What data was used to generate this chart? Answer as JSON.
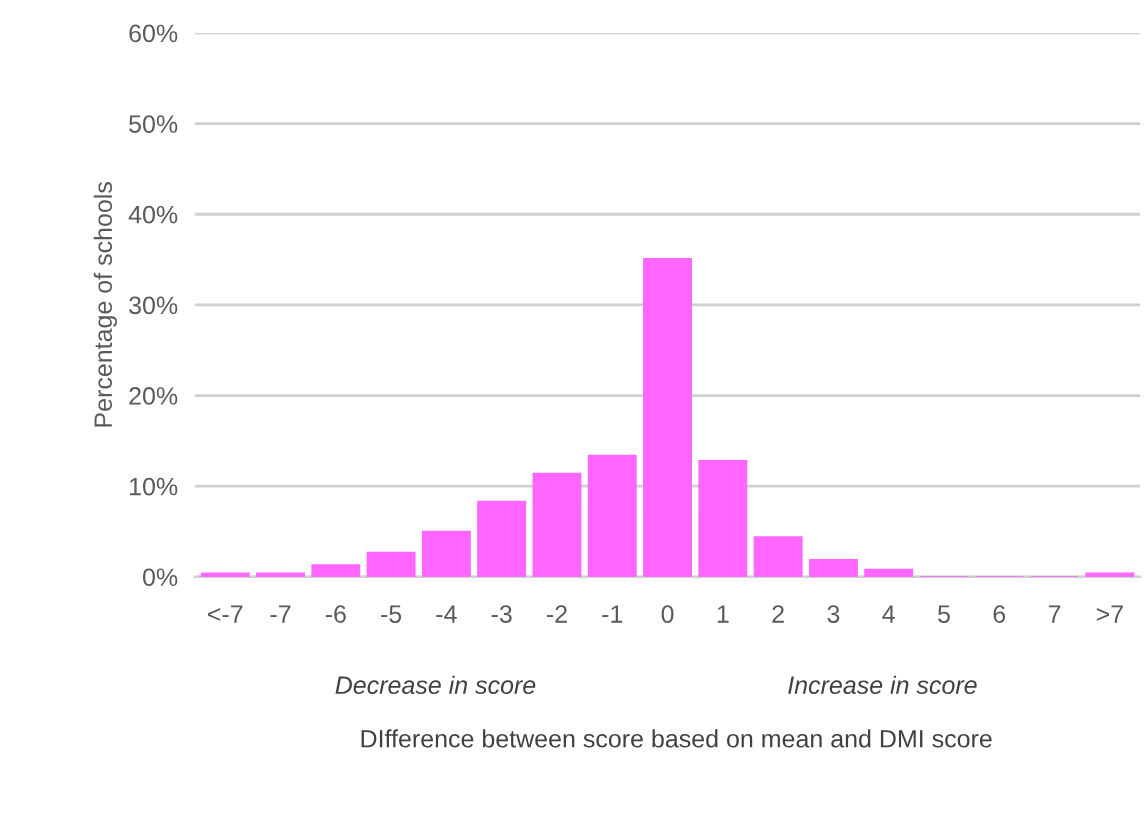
{
  "chart_data": {
    "type": "bar",
    "ylabel": "Percentage of schools",
    "xlabel": "DIfference between score based on mean and DMI score",
    "categories": [
      "<-7",
      "-7",
      "-6",
      "-5",
      "-4",
      "-3",
      "-2",
      "-1",
      "0",
      "1",
      "2",
      "3",
      "4",
      "5",
      "6",
      "7",
      ">7"
    ],
    "values": [
      0.4,
      0.4,
      1.3,
      2.7,
      5.0,
      8.3,
      11.4,
      13.4,
      35.1,
      12.8,
      4.4,
      1.9,
      0.8,
      0,
      0,
      0,
      0.4
    ],
    "color": "#ff66ff",
    "ylim": [
      0,
      60
    ],
    "yticks": [
      {
        "value": 0,
        "label": "0%"
      },
      {
        "value": 10,
        "label": "10%"
      },
      {
        "value": 20,
        "label": "20%"
      },
      {
        "value": 30,
        "label": "30%"
      },
      {
        "value": 40,
        "label": "40%"
      },
      {
        "value": 50,
        "label": "50%"
      },
      {
        "value": 60,
        "label": "60%"
      }
    ],
    "grid": "y",
    "annotations": [
      "Decrease in score",
      "Increase in score"
    ]
  }
}
